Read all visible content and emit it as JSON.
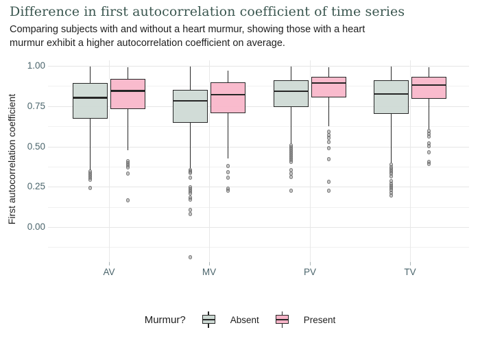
{
  "chart_data": {
    "type": "boxplot",
    "title": "Difference in first autocorrelation coefficient of time series",
    "subtitle": "Comparing subjects with and without a heart murmur, showing those with a heart\nmurmur exhibit a higher autocorrelation coefficient on average.",
    "xlabel": "",
    "ylabel": "First autocorrelation coefficient",
    "categories": [
      "AV",
      "MV",
      "PV",
      "TV"
    ],
    "y_axis": {
      "tick_values": [
        1.0,
        0.75,
        0.5,
        0.25,
        0.0
      ],
      "tick_labels": [
        "1.00",
        "0.75",
        "0.50",
        "0.25",
        "0.00"
      ],
      "minor_tick_values": [
        0.875,
        0.625,
        0.375,
        0.125,
        -0.125
      ],
      "range": [
        -0.22,
        1.04
      ],
      "grid": true
    },
    "legend": {
      "title": "Murmur?",
      "position": "bottom",
      "entries": [
        {
          "label": "Absent",
          "color": "#ccd9d3"
        },
        {
          "label": "Present",
          "color": "#f8b4c8"
        }
      ]
    },
    "colors": {
      "stroke": "#252525",
      "outlier": "#8c8c8c",
      "title_text": "#3a564f",
      "axis_text": "#4a646b"
    },
    "series": [
      {
        "name": "Absent",
        "color": "#ccd9d3",
        "boxes": [
          {
            "category": "AV",
            "whisker_low": 0.353,
            "q1": 0.672,
            "median": 0.802,
            "q3": 0.894,
            "whisker_high": 0.995,
            "outliers": [
              0.345,
              0.332,
              0.319,
              0.306,
              0.294,
              0.243
            ]
          },
          {
            "category": "MV",
            "whisker_low": 0.366,
            "q1": 0.647,
            "median": 0.783,
            "q3": 0.851,
            "whisker_high": 0.995,
            "outliers": [
              0.355,
              0.345,
              0.336,
              0.306,
              0.247,
              0.234,
              0.221,
              0.209,
              0.183,
              0.17,
              0.106,
              0.081,
              -0.187
            ]
          },
          {
            "category": "PV",
            "whisker_low": 0.519,
            "q1": 0.745,
            "median": 0.843,
            "q3": 0.911,
            "whisker_high": 0.995,
            "outliers": [
              0.506,
              0.494,
              0.481,
              0.468,
              0.455,
              0.443,
              0.43,
              0.417,
              0.404,
              0.353,
              0.332,
              0.311,
              0.226
            ]
          },
          {
            "category": "TV",
            "whisker_low": 0.4,
            "q1": 0.702,
            "median": 0.826,
            "q3": 0.911,
            "whisker_high": 0.995,
            "outliers": [
              0.387,
              0.37,
              0.357,
              0.345,
              0.332,
              0.315,
              0.285,
              0.268,
              0.255,
              0.243,
              0.23,
              0.213,
              0.196
            ]
          }
        ]
      },
      {
        "name": "Present",
        "color": "#f8b4c8",
        "boxes": [
          {
            "category": "AV",
            "whisker_low": 0.477,
            "q1": 0.732,
            "median": 0.845,
            "q3": 0.919,
            "whisker_high": 0.991,
            "outliers": [
              0.409,
              0.396,
              0.383,
              0.37,
              0.332,
              0.166
            ]
          },
          {
            "category": "MV",
            "whisker_low": 0.426,
            "q1": 0.706,
            "median": 0.821,
            "q3": 0.898,
            "whisker_high": 0.97,
            "outliers": [
              0.379,
              0.34,
              0.306,
              0.238,
              0.226
            ]
          },
          {
            "category": "PV",
            "whisker_low": 0.626,
            "q1": 0.804,
            "median": 0.894,
            "q3": 0.932,
            "whisker_high": 0.991,
            "outliers": [
              0.591,
              0.57,
              0.553,
              0.528,
              0.489,
              0.421,
              0.281,
              0.226
            ]
          },
          {
            "category": "TV",
            "whisker_low": 0.609,
            "q1": 0.796,
            "median": 0.881,
            "q3": 0.932,
            "whisker_high": 0.991,
            "outliers": [
              0.596,
              0.579,
              0.562,
              0.519,
              0.502,
              0.464,
              0.404,
              0.391
            ]
          }
        ]
      }
    ]
  }
}
